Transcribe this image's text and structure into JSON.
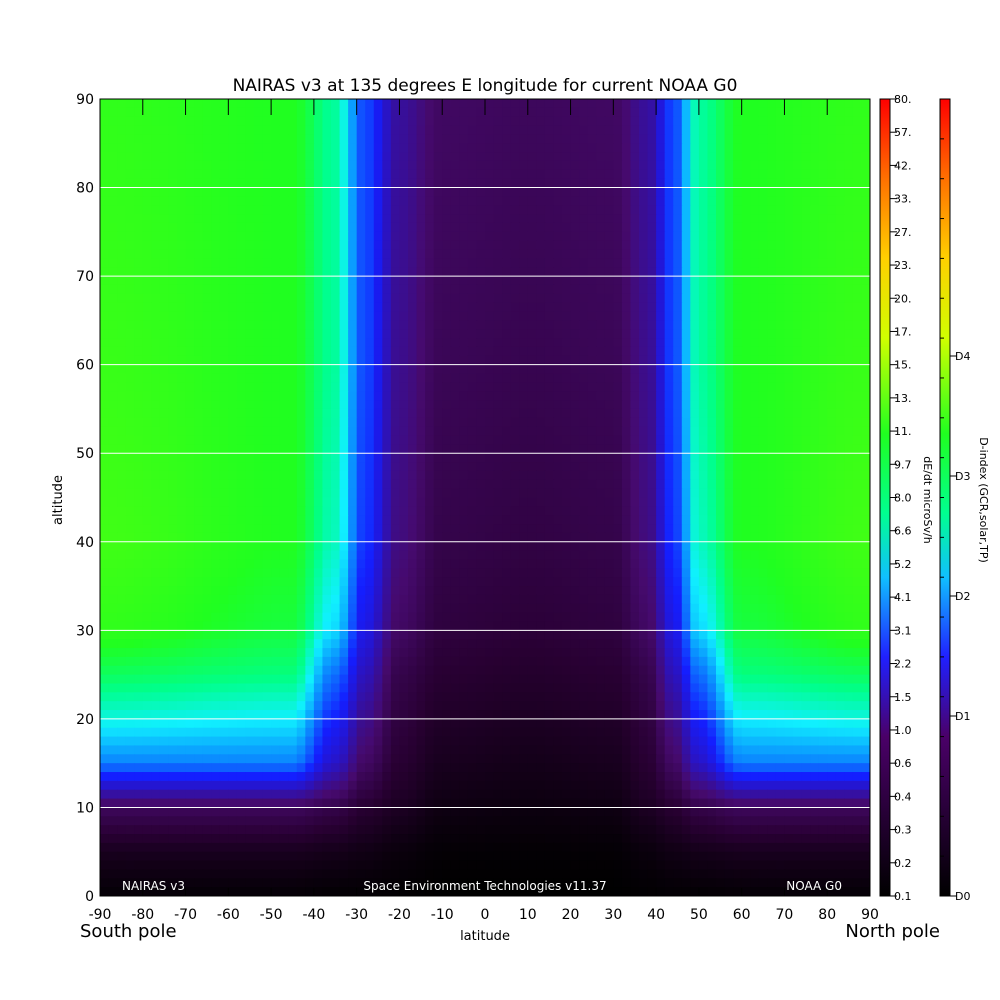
{
  "chart_data": {
    "type": "heatmap",
    "title": "NAIRAS v3 at 135 degrees E longitude for current NOAA G0",
    "xlabel": "latitude",
    "ylabel": "altitude",
    "x_ticks": [
      "-90",
      "-80",
      "-70",
      "-60",
      "-50",
      "-40",
      "-30",
      "-20",
      "-10",
      "0",
      "10",
      "20",
      "30",
      "40",
      "50",
      "60",
      "70",
      "80",
      "90"
    ],
    "y_ticks": [
      "0",
      "10",
      "20",
      "30",
      "40",
      "50",
      "60",
      "70",
      "80",
      "90"
    ],
    "xlim": [
      -90,
      90
    ],
    "ylim": [
      0,
      90
    ],
    "grid": "horizontal lines at 10-unit altitude intervals",
    "x_end_labels": {
      "left": "South pole",
      "right": "North pole"
    },
    "annotations": {
      "left": "NAIRAS v3",
      "center": "Space Environment Technologies v11.37",
      "right": "NOAA G0"
    },
    "colorbar_dose": {
      "label": "dE/dt microSv/h",
      "ticks": [
        "0.1",
        "0.2",
        "0.3",
        "0.4",
        "0.6",
        "1.0",
        "1.5",
        "2.2",
        "3.1",
        "4.1",
        "5.2",
        "6.6",
        "8.0",
        "9.7",
        "11.",
        "13.",
        "15.",
        "17.",
        "20.",
        "23.",
        "27.",
        "33.",
        "42.",
        "57.",
        "80."
      ]
    },
    "colorbar_dindex": {
      "label": "D-index (GCR,solar,TP)",
      "ticks": [
        "D0",
        "D1",
        "D2",
        "D3",
        "D4"
      ]
    },
    "field": {
      "description_values": "approximate dose rate level (0=black,1=purple,2=blue,3=cyan,4=green) by latitude and altitude",
      "altitudes": [
        0,
        5,
        10,
        15,
        20,
        25,
        30,
        40,
        60,
        90
      ],
      "profiles": [
        {
          "lat": -90,
          "levels": [
            0.05,
            0.3,
            0.85,
            2.5,
            3.1,
            3.5,
            3.8,
            3.9,
            3.85,
            3.8
          ]
        },
        {
          "lat": -45,
          "levels": [
            0.05,
            0.3,
            0.85,
            2.5,
            3.0,
            3.4,
            3.6,
            3.7,
            3.7,
            3.7
          ]
        },
        {
          "lat": -35,
          "levels": [
            0.03,
            0.25,
            0.7,
            1.6,
            2.0,
            2.4,
            2.9,
            3.2,
            3.3,
            3.3
          ]
        },
        {
          "lat": -28,
          "levels": [
            0.03,
            0.2,
            0.5,
            0.9,
            1.2,
            1.5,
            1.8,
            2.1,
            2.2,
            2.2
          ]
        },
        {
          "lat": -20,
          "levels": [
            0.02,
            0.12,
            0.35,
            0.5,
            0.6,
            0.7,
            0.9,
            1.1,
            1.2,
            1.3
          ]
        },
        {
          "lat": -10,
          "levels": [
            0.0,
            0.05,
            0.18,
            0.3,
            0.4,
            0.5,
            0.6,
            0.7,
            0.8,
            0.9
          ]
        },
        {
          "lat": 10,
          "levels": [
            0.0,
            0.04,
            0.15,
            0.25,
            0.35,
            0.45,
            0.55,
            0.65,
            0.75,
            0.85
          ]
        },
        {
          "lat": 30,
          "levels": [
            0.0,
            0.05,
            0.18,
            0.3,
            0.4,
            0.5,
            0.6,
            0.7,
            0.8,
            0.9
          ]
        },
        {
          "lat": 38,
          "levels": [
            0.02,
            0.12,
            0.35,
            0.5,
            0.6,
            0.7,
            0.9,
            1.1,
            1.2,
            1.3
          ]
        },
        {
          "lat": 44,
          "levels": [
            0.03,
            0.2,
            0.5,
            0.9,
            1.2,
            1.5,
            1.8,
            2.1,
            2.2,
            2.2
          ]
        },
        {
          "lat": 50,
          "levels": [
            0.03,
            0.25,
            0.7,
            1.6,
            2.0,
            2.4,
            2.9,
            3.2,
            3.3,
            3.3
          ]
        },
        {
          "lat": 60,
          "levels": [
            0.05,
            0.3,
            0.85,
            2.5,
            3.0,
            3.4,
            3.6,
            3.7,
            3.7,
            3.7
          ]
        },
        {
          "lat": 90,
          "levels": [
            0.05,
            0.3,
            0.85,
            2.5,
            3.1,
            3.5,
            3.8,
            3.9,
            3.85,
            3.8
          ]
        }
      ]
    },
    "colors": {
      "black": "#000000",
      "purple": "#3a0048",
      "violet": "#6a10a8",
      "blue": "#1a1aff",
      "cyan": "#10f0ff",
      "green": "#20ff20",
      "light_green": "#44ff10",
      "grid": "#ffffff"
    }
  }
}
